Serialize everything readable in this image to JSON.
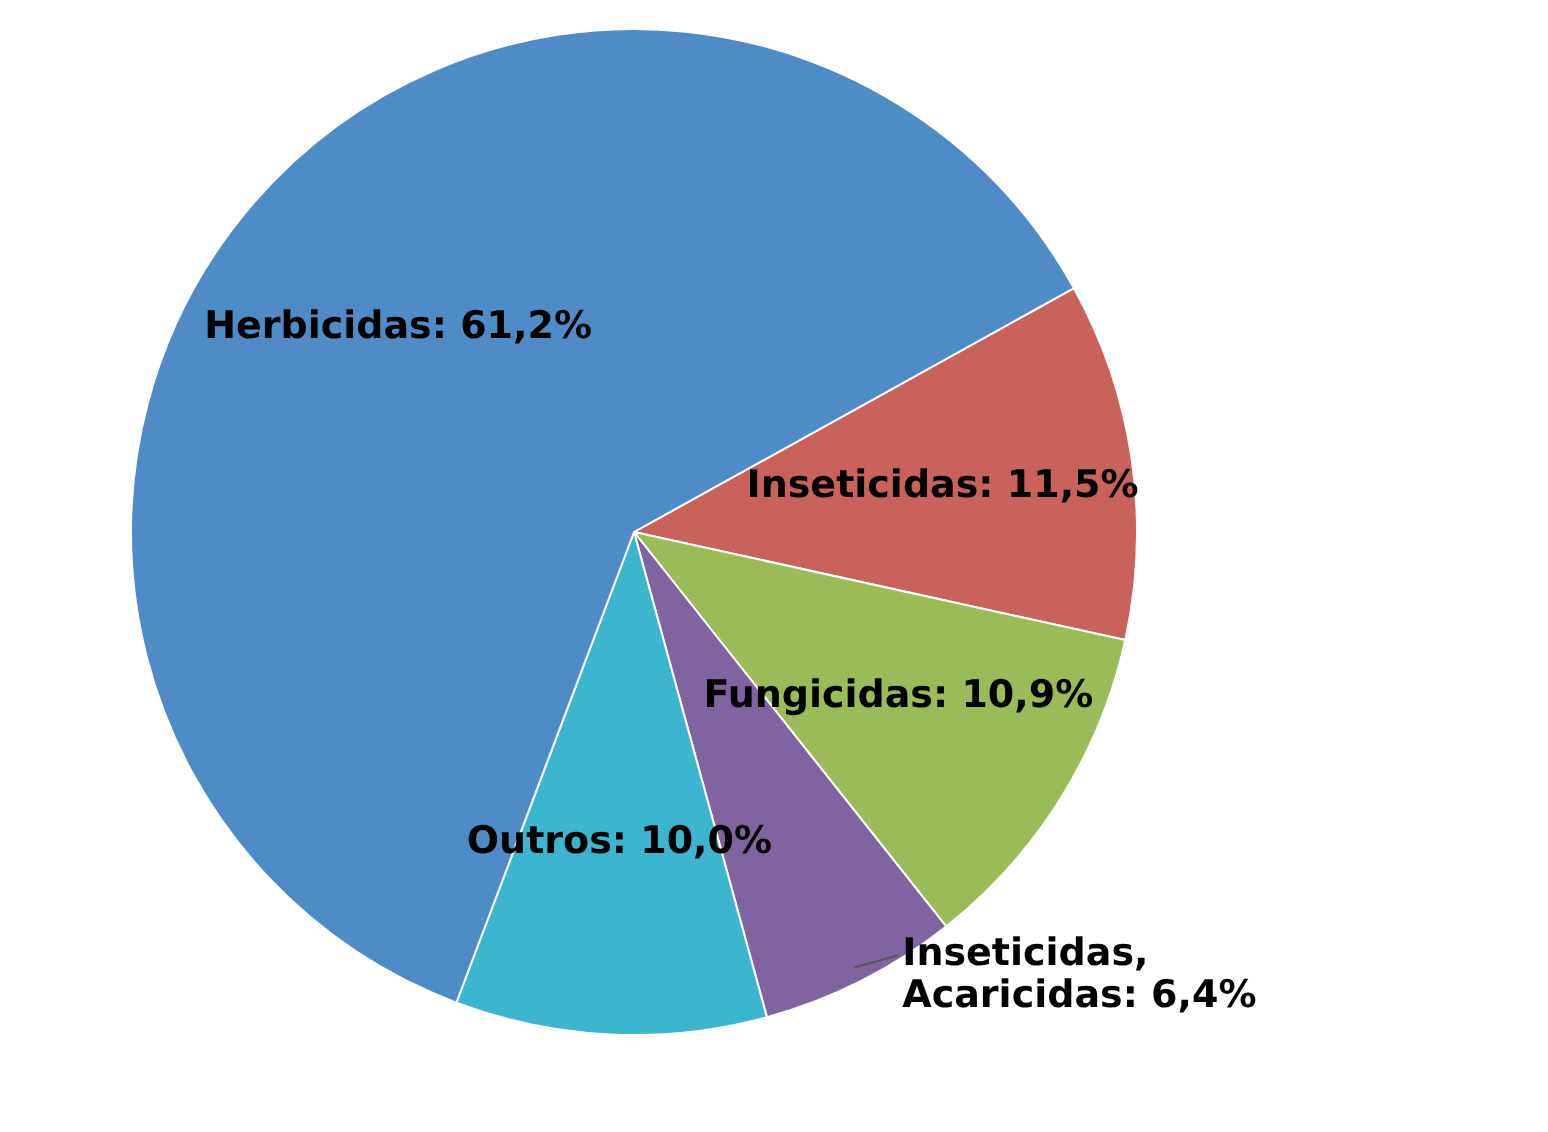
{
  "chart_data": {
    "type": "pie",
    "categories": [
      "Inseticidas",
      "Fungicidas",
      "Inseticidas, Acaricidas",
      "Outros",
      "Herbicidas"
    ],
    "values": [
      11.5,
      10.9,
      6.4,
      10.0,
      61.2
    ],
    "value_labels": [
      "11,5%",
      "10,9%",
      "6,4%",
      "10,0%",
      "61,2%"
    ],
    "colors": [
      "#c9625a",
      "#9bbb59",
      "#8064a2",
      "#3cb6cf",
      "#4f8bc6"
    ],
    "legend": false
  }
}
